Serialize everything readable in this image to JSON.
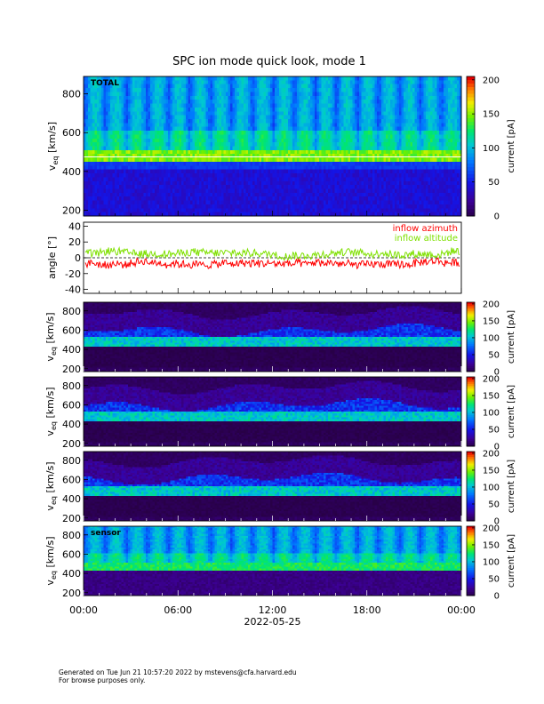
{
  "title": "SPC ion mode quick look, mode 1",
  "footer": {
    "line1": "Generated on Tue Jun 21 10:57:20 2022 by mstevens@cfa.harvard.edu",
    "line2": "For browse purposes only."
  },
  "colors": {
    "azimuth": "#ff0000",
    "altitude": "#7fe000",
    "colormap": "rainbow (purple-blue-cyan-green-yellow-red)",
    "cut_line": "#ffffff"
  },
  "chart_data": [
    {
      "type": "heatmap",
      "panel": "total",
      "label": "TOTAL",
      "ylabel": "v",
      "ylabel_sub": "eq",
      "ylabel_unit": "[km/s]",
      "ylim": [
        170,
        890
      ],
      "yticks": [
        "200",
        "400",
        "600",
        "800"
      ],
      "x": [
        "00:00",
        "06:00",
        "12:00",
        "18:00",
        "00:00"
      ],
      "colorbar": {
        "label": "current [pA]",
        "range": [
          0,
          205
        ],
        "ticks": [
          "0",
          "50",
          "100",
          "150",
          "200"
        ]
      },
      "features": {
        "bright_band_kms": [
          450,
          500
        ],
        "cut_kms": 445,
        "sweep_periods": 18
      },
      "grid": false
    },
    {
      "type": "line",
      "panel": "angle",
      "ylabel": "angle [°]",
      "ylim": [
        -45,
        45
      ],
      "yticks": [
        "40",
        "20",
        "0",
        "-20",
        "-40"
      ],
      "x": [
        "00:00",
        "06:00",
        "12:00",
        "18:00",
        "00:00"
      ],
      "series": [
        {
          "name": "inflow azimuth",
          "mean": -8,
          "spread": 5
        },
        {
          "name": "inflow altitude",
          "mean": 6,
          "spread": 5
        }
      ],
      "legend": "top-right",
      "reference_line": 0
    },
    {
      "type": "heatmap",
      "panel": "sensor A",
      "label": "",
      "ylabel": "v",
      "ylabel_sub": "eq",
      "ylabel_unit": "[km/s]",
      "ylim": [
        170,
        890
      ],
      "yticks": [
        "200",
        "400",
        "600",
        "800"
      ],
      "colorbar": {
        "label": "current [pA]",
        "range": [
          0,
          205
        ],
        "ticks": [
          "0",
          "50",
          "100",
          "150",
          "200"
        ]
      },
      "features": {
        "bright_band_kms": [
          440,
          520
        ],
        "cut_kms": 430
      }
    },
    {
      "type": "heatmap",
      "panel": "sensor B",
      "label": "",
      "ylabel": "v",
      "ylabel_sub": "eq",
      "ylabel_unit": "[km/s]",
      "ylim": [
        170,
        890
      ],
      "yticks": [
        "200",
        "400",
        "600",
        "800"
      ],
      "colorbar": {
        "label": "current [pA]",
        "range": [
          0,
          205
        ],
        "ticks": [
          "0",
          "50",
          "100",
          "150",
          "200"
        ]
      },
      "features": {
        "bright_band_kms": [
          440,
          520
        ],
        "cut_kms": 430
      }
    },
    {
      "type": "heatmap",
      "panel": "sensor C",
      "label": "",
      "ylabel": "v",
      "ylabel_sub": "eq",
      "ylabel_unit": "[km/s]",
      "ylim": [
        170,
        890
      ],
      "yticks": [
        "200",
        "400",
        "600",
        "800"
      ],
      "colorbar": {
        "label": "current [pA]",
        "range": [
          0,
          205
        ],
        "ticks": [
          "0",
          "50",
          "100",
          "150",
          "200"
        ]
      },
      "features": {
        "bright_band_kms": [
          440,
          530
        ],
        "cut_kms": 430
      }
    },
    {
      "type": "heatmap",
      "panel": "sensor D",
      "label": "sensor",
      "ylabel": "v",
      "ylabel_sub": "eq",
      "ylabel_unit": "[km/s]",
      "ylim": [
        170,
        890
      ],
      "yticks": [
        "200",
        "400",
        "600",
        "800"
      ],
      "colorbar": {
        "label": "current [pA]",
        "range": [
          0,
          205
        ],
        "ticks": [
          "0",
          "50",
          "100",
          "150",
          "200"
        ]
      },
      "features": {
        "bright_band_kms": [
          440,
          500
        ],
        "cut_kms": 430,
        "sweep_periods": 18
      }
    }
  ],
  "xaxis": {
    "ticks": [
      "00:00",
      "06:00",
      "12:00",
      "18:00",
      "00:00"
    ],
    "date": "2022-05-25"
  }
}
